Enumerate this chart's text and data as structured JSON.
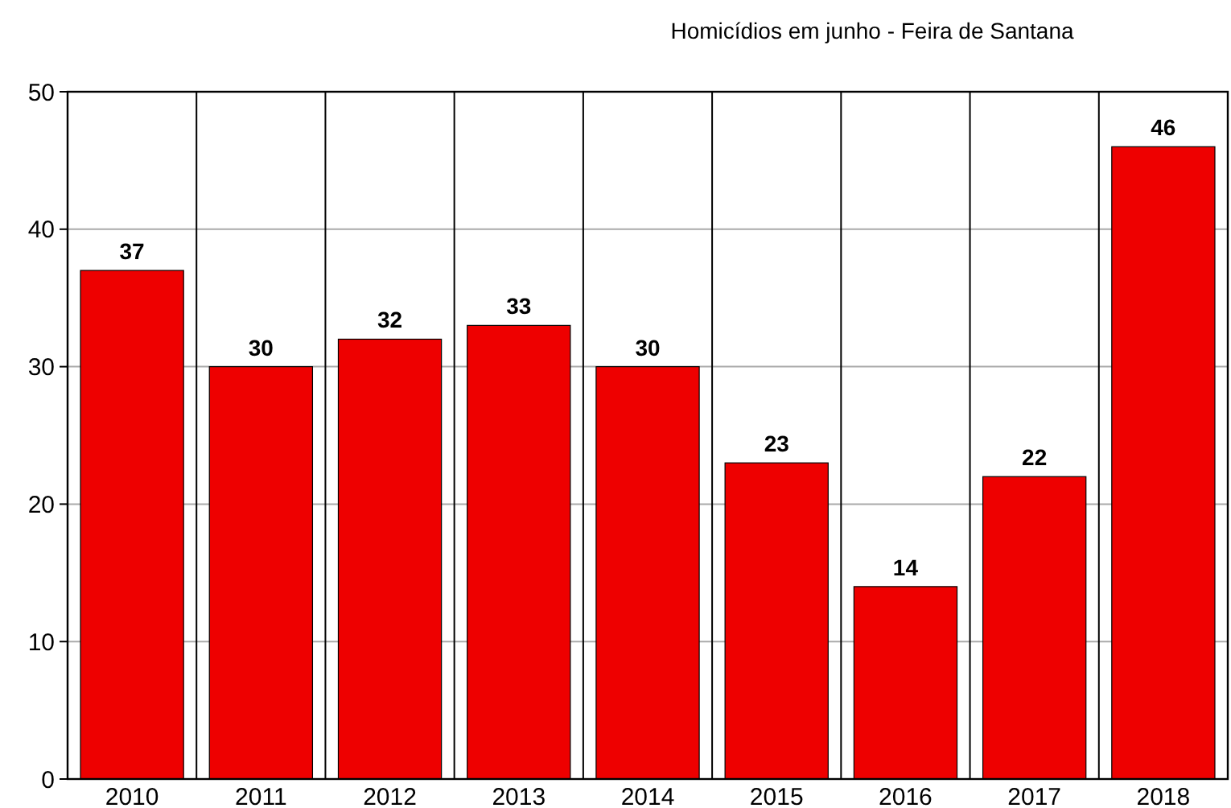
{
  "chart_data": {
    "type": "bar",
    "title": "Homicídios em junho - Feira de Santana",
    "categories": [
      "2010",
      "2011",
      "2012",
      "2013",
      "2014",
      "2015",
      "2016",
      "2017",
      "2018"
    ],
    "values": [
      37,
      30,
      32,
      33,
      30,
      23,
      14,
      22,
      46
    ],
    "color": "#ee0000",
    "ylim": [
      0,
      50
    ],
    "yticks": [
      0,
      10,
      20,
      30,
      40,
      50
    ],
    "grid": true,
    "data_labels": true
  }
}
